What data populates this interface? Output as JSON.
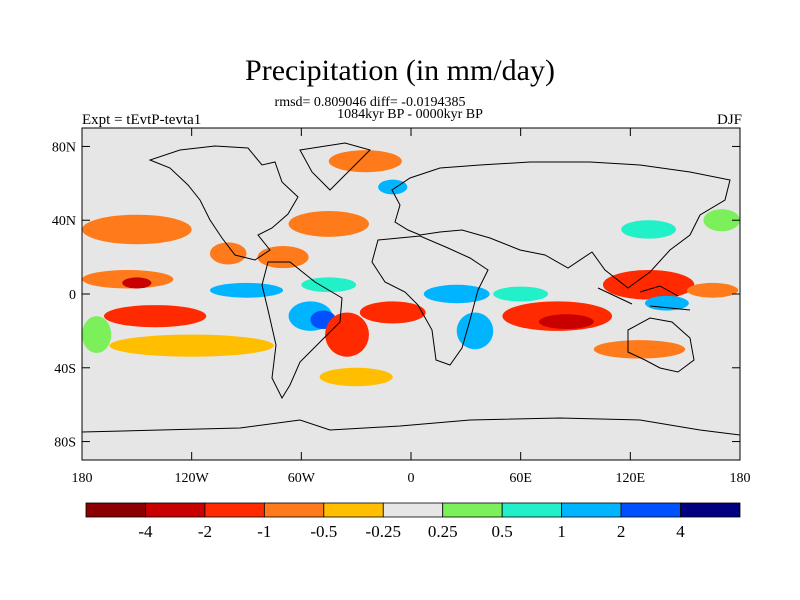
{
  "title": "Precipitation (in mm/day)",
  "stats": "rmsd= 0.809046 diff= -0.0194385",
  "period": "1084kyr BP - 0000kyr BP",
  "expt": "Expt = tEvtP-tevta1",
  "season": "DJF",
  "lat_ticks": [
    {
      "label": "80N",
      "lat": 80
    },
    {
      "label": "40N",
      "lat": 40
    },
    {
      "label": "0",
      "lat": 0
    },
    {
      "label": "40S",
      "lat": -40
    },
    {
      "label": "80S",
      "lat": -80
    }
  ],
  "lon_ticks": [
    {
      "label": "180",
      "lon": -180
    },
    {
      "label": "120W",
      "lon": -120
    },
    {
      "label": "60W",
      "lon": -60
    },
    {
      "label": "0",
      "lon": 0
    },
    {
      "label": "60E",
      "lon": 60
    },
    {
      "label": "120E",
      "lon": 120
    },
    {
      "label": "180",
      "lon": 180
    }
  ],
  "colorbar": {
    "colors": [
      "#8b0000",
      "#c80000",
      "#ff2a00",
      "#ff7a1a",
      "#ffbf00",
      "#e6e6e6",
      "#7cf05a",
      "#22f0c8",
      "#00b4ff",
      "#0050ff",
      "#000080"
    ],
    "labels": [
      "-4",
      "-2",
      "-1",
      "-0.5",
      "-0.25",
      "0.25",
      "0.5",
      "1",
      "2",
      "4"
    ]
  },
  "anomaly_regions": [
    {
      "level": 3,
      "lon": -150,
      "lat": 35,
      "rlon": 30,
      "rlat": 8
    },
    {
      "level": 3,
      "lon": -155,
      "lat": 8,
      "rlon": 25,
      "rlat": 5
    },
    {
      "level": 1,
      "lon": -150,
      "lat": 6,
      "rlon": 8,
      "rlat": 3
    },
    {
      "level": 2,
      "lon": -140,
      "lat": -12,
      "rlon": 28,
      "rlat": 6
    },
    {
      "level": 4,
      "lon": -120,
      "lat": -28,
      "rlon": 45,
      "rlat": 6
    },
    {
      "level": 6,
      "lon": -172,
      "lat": -22,
      "rlon": 8,
      "rlat": 10
    },
    {
      "level": 3,
      "lon": -100,
      "lat": 22,
      "rlon": 10,
      "rlat": 6
    },
    {
      "level": 3,
      "lon": -70,
      "lat": 20,
      "rlon": 14,
      "rlat": 6
    },
    {
      "level": 8,
      "lon": -90,
      "lat": 2,
      "rlon": 20,
      "rlat": 4
    },
    {
      "level": 7,
      "lon": -45,
      "lat": 5,
      "rlon": 15,
      "rlat": 4
    },
    {
      "level": 8,
      "lon": -55,
      "lat": -12,
      "rlon": 12,
      "rlat": 8
    },
    {
      "level": 9,
      "lon": -48,
      "lat": -14,
      "rlon": 7,
      "rlat": 5
    },
    {
      "level": 2,
      "lon": -35,
      "lat": -22,
      "rlon": 12,
      "rlat": 12
    },
    {
      "level": 4,
      "lon": -30,
      "lat": -45,
      "rlon": 20,
      "rlat": 5
    },
    {
      "level": 3,
      "lon": -45,
      "lat": 38,
      "rlon": 22,
      "rlat": 7
    },
    {
      "level": 3,
      "lon": -25,
      "lat": 72,
      "rlon": 20,
      "rlat": 6
    },
    {
      "level": 8,
      "lon": -10,
      "lat": 58,
      "rlon": 8,
      "rlat": 4
    },
    {
      "level": 2,
      "lon": -10,
      "lat": -10,
      "rlon": 18,
      "rlat": 6
    },
    {
      "level": 8,
      "lon": 25,
      "lat": 0,
      "rlon": 18,
      "rlat": 5
    },
    {
      "level": 8,
      "lon": 35,
      "lat": -20,
      "rlon": 10,
      "rlat": 10
    },
    {
      "level": 2,
      "lon": 80,
      "lat": -12,
      "rlon": 30,
      "rlat": 8
    },
    {
      "level": 1,
      "lon": 85,
      "lat": -15,
      "rlon": 15,
      "rlat": 4
    },
    {
      "level": 7,
      "lon": 60,
      "lat": 0,
      "rlon": 15,
      "rlat": 4
    },
    {
      "level": 2,
      "lon": 130,
      "lat": 5,
      "rlon": 25,
      "rlat": 8
    },
    {
      "level": 8,
      "lon": 140,
      "lat": -5,
      "rlon": 12,
      "rlat": 4
    },
    {
      "level": 7,
      "lon": 130,
      "lat": 35,
      "rlon": 15,
      "rlat": 5
    },
    {
      "level": 3,
      "lon": 125,
      "lat": -30,
      "rlon": 25,
      "rlat": 5
    },
    {
      "level": 6,
      "lon": 170,
      "lat": 40,
      "rlon": 10,
      "rlat": 6
    },
    {
      "level": 3,
      "lon": 165,
      "lat": 2,
      "rlon": 14,
      "rlat": 4
    }
  ],
  "map_zoom": "world"
}
